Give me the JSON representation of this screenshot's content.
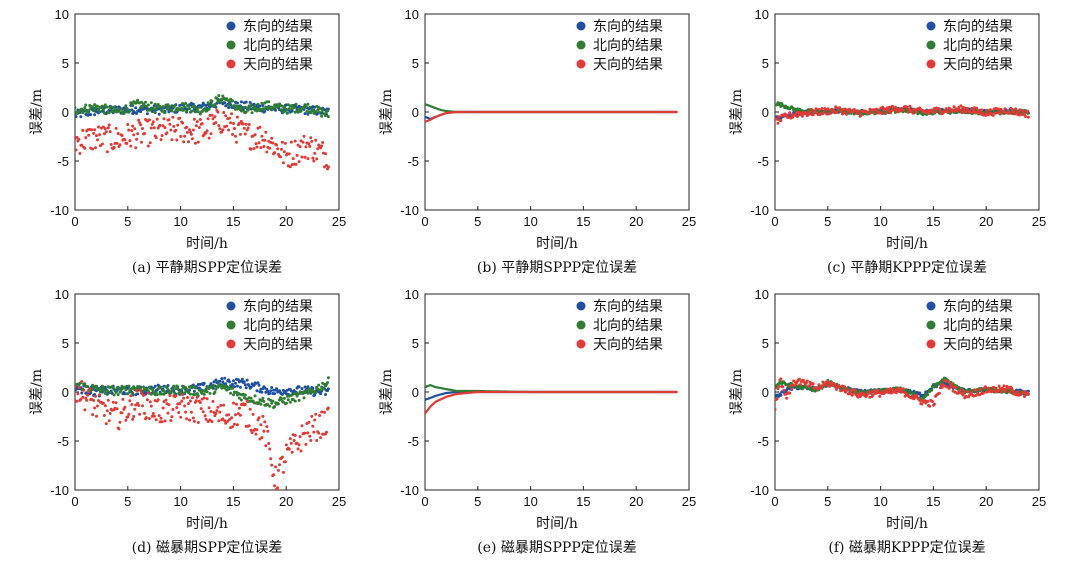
{
  "legend_labels": [
    "东向的结果",
    "北向的结果",
    "天向的结果"
  ],
  "colors": {
    "east": "#1f4fa0",
    "north": "#2e7d32",
    "up": "#e53935"
  },
  "chart_data": [
    {
      "type": "scatter",
      "title": "",
      "caption": "(a) 平静期SPP定位误差",
      "xlabel": "时间/h",
      "ylabel": "误差/m",
      "xlim": [
        0,
        25
      ],
      "ylim": [
        -10,
        10
      ],
      "xticks": [
        "0",
        "5",
        "10",
        "15",
        "20",
        "25"
      ],
      "yticks": [
        "10",
        "5",
        "0",
        "-5",
        "-10"
      ],
      "legend": "top-right",
      "x": [
        0,
        2,
        4,
        6,
        8,
        10,
        12,
        14,
        16,
        18,
        20,
        22,
        24
      ],
      "series": [
        {
          "name": "东向的结果",
          "color": "#1f4fa0",
          "values": [
            -0.3,
            0.1,
            0.2,
            0.3,
            0.2,
            0.4,
            0.5,
            1.0,
            0.6,
            0.4,
            0.3,
            0.2,
            0.0
          ]
        },
        {
          "name": "北向的结果",
          "color": "#2e7d32",
          "values": [
            0.2,
            0.5,
            0.0,
            0.8,
            0.3,
            0.6,
            0.2,
            1.5,
            0.0,
            0.7,
            0.3,
            0.5,
            -0.3
          ]
        },
        {
          "name": "天向的结果",
          "color": "#e53935",
          "values": [
            -3.0,
            -2.6,
            -2.8,
            -2.2,
            -2.0,
            -1.8,
            -2.0,
            -0.8,
            -2.3,
            -2.6,
            -4.5,
            -3.4,
            -4.5
          ]
        }
      ]
    },
    {
      "type": "line",
      "title": "",
      "caption": "(b) 平静期SPPP定位误差",
      "xlabel": "时间/h",
      "ylabel": "误差/m",
      "xlim": [
        0,
        25
      ],
      "ylim": [
        -10,
        10
      ],
      "xticks": [
        "0",
        "5",
        "10",
        "15",
        "20",
        "25"
      ],
      "yticks": [
        "10",
        "5",
        "0",
        "-5",
        "-10"
      ],
      "legend": "top-right",
      "x": [
        0,
        0.5,
        1,
        1.5,
        2,
        3,
        5,
        10,
        15,
        20,
        24
      ],
      "series": [
        {
          "name": "东向的结果",
          "color": "#1f4fa0",
          "values": [
            -0.5,
            -0.7,
            -0.5,
            -0.3,
            -0.1,
            0.0,
            0.0,
            0.0,
            0.0,
            0.0,
            0.0
          ]
        },
        {
          "name": "北向的结果",
          "color": "#2e7d32",
          "values": [
            0.8,
            0.6,
            0.4,
            0.2,
            0.1,
            0.0,
            0.0,
            0.0,
            0.0,
            0.0,
            0.0
          ]
        },
        {
          "name": "天向的结果",
          "color": "#e53935",
          "values": [
            -1.0,
            -0.8,
            -0.5,
            -0.3,
            -0.1,
            0.0,
            0.0,
            0.0,
            0.0,
            0.0,
            0.0
          ]
        }
      ]
    },
    {
      "type": "scatter",
      "title": "",
      "caption": "(c) 平静期KPPP定位误差",
      "xlabel": "时间/h",
      "ylabel": "误差/m",
      "xlim": [
        0,
        25
      ],
      "ylim": [
        -10,
        10
      ],
      "xticks": [
        "0",
        "5",
        "10",
        "15",
        "20",
        "25"
      ],
      "yticks": [
        "10",
        "5",
        "0",
        "-5",
        "-10"
      ],
      "legend": "top-right",
      "x": [
        0,
        1,
        2,
        4,
        6,
        8,
        10,
        12,
        14,
        16,
        18,
        20,
        22,
        24
      ],
      "series": [
        {
          "name": "东向的结果",
          "color": "#1f4fa0",
          "values": [
            -0.6,
            -0.4,
            -0.1,
            0.0,
            0.1,
            0.0,
            0.1,
            0.3,
            0.0,
            0.1,
            0.2,
            0.0,
            0.1,
            0.0
          ]
        },
        {
          "name": "北向的结果",
          "color": "#2e7d32",
          "values": [
            0.9,
            0.6,
            0.2,
            0.0,
            0.1,
            -0.1,
            0.0,
            0.2,
            -0.1,
            0.0,
            0.1,
            -0.1,
            0.0,
            0.0
          ]
        },
        {
          "name": "天向的结果",
          "color": "#e53935",
          "values": [
            -1.0,
            -0.5,
            -0.2,
            0.0,
            0.2,
            -0.1,
            0.1,
            0.4,
            0.0,
            0.2,
            0.3,
            -0.1,
            0.2,
            -0.2
          ]
        }
      ]
    },
    {
      "type": "scatter",
      "title": "",
      "caption": "(d) 磁暴期SPP定位误差",
      "xlabel": "时间/h",
      "ylabel": "误差/m",
      "xlim": [
        0,
        25
      ],
      "ylim": [
        -10,
        10
      ],
      "xticks": [
        "0",
        "5",
        "10",
        "15",
        "20",
        "25"
      ],
      "yticks": [
        "10",
        "5",
        "0",
        "-5",
        "-10"
      ],
      "legend": "top-right",
      "x": [
        0,
        2,
        4,
        6,
        8,
        10,
        12,
        14,
        16,
        18,
        19,
        20,
        22,
        24
      ],
      "series": [
        {
          "name": "东向的结果",
          "color": "#1f4fa0",
          "values": [
            0.5,
            0.0,
            0.2,
            0.1,
            0.3,
            0.2,
            0.4,
            1.0,
            0.9,
            0.3,
            0.0,
            0.2,
            0.1,
            0.0
          ]
        },
        {
          "name": "北向的结果",
          "color": "#2e7d32",
          "values": [
            0.8,
            0.3,
            0.1,
            0.4,
            0.0,
            0.3,
            0.0,
            0.5,
            -0.5,
            -1.0,
            -1.2,
            -0.8,
            -0.2,
            1.0
          ]
        },
        {
          "name": "天向的结果",
          "color": "#e53935",
          "values": [
            0.5,
            -1.5,
            -2.5,
            -1.0,
            -2.0,
            -1.5,
            -1.8,
            -2.5,
            -2.0,
            -4.0,
            -9.0,
            -6.5,
            -4.0,
            -3.0
          ]
        }
      ]
    },
    {
      "type": "line",
      "title": "",
      "caption": "(e) 磁暴期SPPP定位误差",
      "xlabel": "时间/h",
      "ylabel": "误差/m",
      "xlim": [
        0,
        25
      ],
      "ylim": [
        -10,
        10
      ],
      "xticks": [
        "0",
        "5",
        "10",
        "15",
        "20",
        "25"
      ],
      "yticks": [
        "10",
        "5",
        "0",
        "-5",
        "-10"
      ],
      "legend": "top-right",
      "x": [
        0,
        0.5,
        1,
        2,
        3,
        5,
        10,
        15,
        20,
        24
      ],
      "series": [
        {
          "name": "东向的结果",
          "color": "#1f4fa0",
          "values": [
            -0.8,
            -0.6,
            -0.4,
            -0.1,
            0.0,
            0.0,
            0.0,
            0.0,
            0.0,
            0.0
          ]
        },
        {
          "name": "北向的结果",
          "color": "#2e7d32",
          "values": [
            0.5,
            0.7,
            0.5,
            0.3,
            0.1,
            0.1,
            0.0,
            0.0,
            0.0,
            0.0
          ]
        },
        {
          "name": "天向的结果",
          "color": "#e53935",
          "values": [
            -2.2,
            -1.5,
            -1.0,
            -0.5,
            -0.2,
            0.0,
            0.0,
            0.0,
            0.0,
            0.0
          ]
        }
      ]
    },
    {
      "type": "scatter",
      "title": "",
      "caption": "(f) 磁暴期KPPP定位误差",
      "xlabel": "时间/h",
      "ylabel": "误差/m",
      "xlim": [
        0,
        25
      ],
      "ylim": [
        -10,
        10
      ],
      "xticks": [
        "0",
        "5",
        "10",
        "15",
        "20",
        "25"
      ],
      "yticks": [
        "10",
        "5",
        "0",
        "-5",
        "-10"
      ],
      "legend": "top-right",
      "x": [
        0,
        0.5,
        1,
        2,
        4,
        5,
        8,
        12,
        14,
        15,
        16,
        18,
        20,
        22,
        24
      ],
      "series": [
        {
          "name": "东向的结果",
          "color": "#1f4fa0",
          "values": [
            -0.5,
            -0.3,
            0.2,
            0.5,
            0.3,
            0.8,
            0.0,
            0.2,
            -0.3,
            0.6,
            0.9,
            0.1,
            0.2,
            0.1,
            0.0
          ]
        },
        {
          "name": "北向的结果",
          "color": "#2e7d32",
          "values": [
            0.5,
            1.0,
            0.8,
            0.6,
            0.2,
            1.0,
            -0.1,
            0.3,
            -0.8,
            0.5,
            1.3,
            0.0,
            0.3,
            0.1,
            -0.2
          ]
        },
        {
          "name": "天向的结果",
          "color": "#e53935",
          "values": [
            -1.5,
            1.5,
            -0.5,
            1.2,
            0.4,
            0.9,
            -0.3,
            0.1,
            -1.0,
            -1.2,
            1.0,
            -0.3,
            0.2,
            0.3,
            -0.4
          ]
        }
      ]
    }
  ]
}
